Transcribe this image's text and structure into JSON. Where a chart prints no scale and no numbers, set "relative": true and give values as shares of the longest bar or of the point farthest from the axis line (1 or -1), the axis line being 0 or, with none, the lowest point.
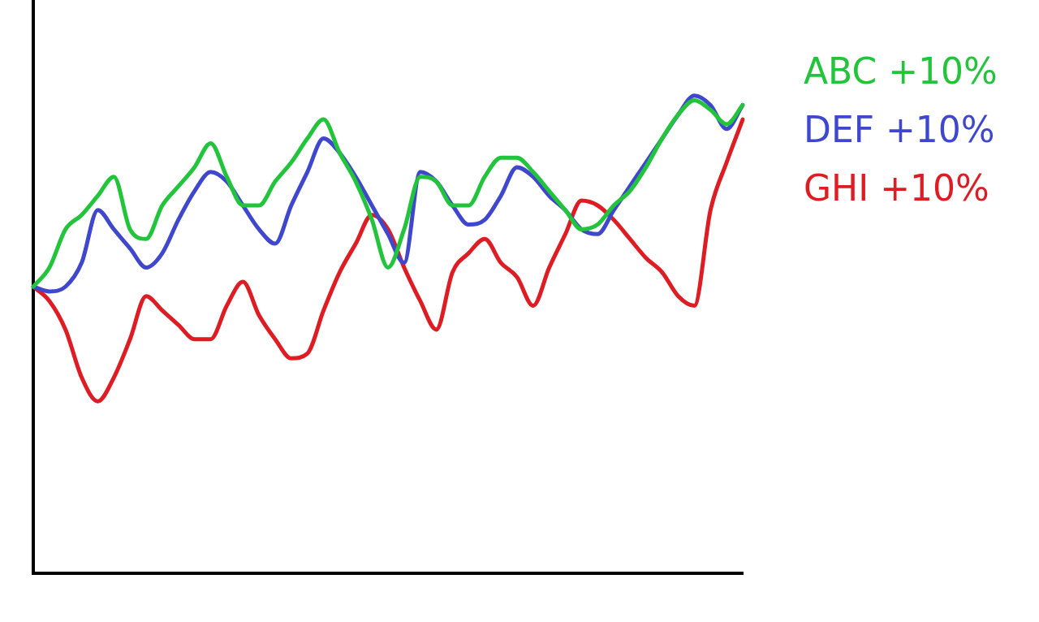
{
  "chart_data": {
    "type": "line",
    "relative": true,
    "legend": "top right",
    "categories": [
      null,
      null,
      null,
      null,
      null,
      null,
      null,
      null,
      null,
      null,
      null,
      null,
      null,
      null,
      null,
      null,
      null,
      null,
      null,
      null,
      null,
      null,
      null,
      null,
      null,
      null,
      null,
      null,
      null,
      null,
      null,
      null,
      null,
      null,
      null,
      null,
      null,
      null,
      null,
      null,
      null,
      null,
      null,
      null,
      null
    ],
    "series": [
      {
        "name": "ABC +10%",
        "color": "#22c43c",
        "values": [
          0.6,
          0.64,
          0.72,
          0.75,
          0.79,
          0.83,
          0.72,
          0.7,
          0.77,
          0.81,
          0.85,
          0.9,
          0.83,
          0.77,
          0.77,
          0.82,
          0.86,
          0.91,
          0.95,
          0.88,
          0.82,
          0.74,
          0.64,
          0.72,
          0.83,
          0.82,
          0.77,
          0.77,
          0.83,
          0.87,
          0.87,
          0.84,
          0.8,
          0.76,
          0.72,
          0.73,
          0.77,
          0.8,
          0.85,
          0.91,
          0.96,
          0.99,
          0.97,
          0.94,
          0.98
        ]
      },
      {
        "name": "DEF +10%",
        "color": "#3f48cc",
        "values": [
          0.6,
          0.59,
          0.6,
          0.65,
          0.76,
          0.72,
          0.68,
          0.64,
          0.67,
          0.74,
          0.8,
          0.84,
          0.82,
          0.77,
          0.72,
          0.69,
          0.77,
          0.84,
          0.91,
          0.88,
          0.83,
          0.77,
          0.71,
          0.65,
          0.84,
          0.82,
          0.77,
          0.73,
          0.74,
          0.79,
          0.85,
          0.83,
          0.79,
          0.76,
          0.72,
          0.71,
          0.76,
          0.81,
          0.86,
          0.91,
          0.96,
          1.0,
          0.98,
          0.93,
          0.98
        ]
      },
      {
        "name": "GHI +10%",
        "color": "#dd1c24",
        "values": [
          0.6,
          0.57,
          0.51,
          0.41,
          0.36,
          0.41,
          0.49,
          0.58,
          0.55,
          0.52,
          0.49,
          0.49,
          0.56,
          0.61,
          0.54,
          0.49,
          0.45,
          0.46,
          0.55,
          0.63,
          0.69,
          0.75,
          0.72,
          0.64,
          0.57,
          0.51,
          0.63,
          0.67,
          0.7,
          0.65,
          0.62,
          0.56,
          0.64,
          0.71,
          0.78,
          0.77,
          0.74,
          0.7,
          0.66,
          0.63,
          0.58,
          0.56,
          0.76,
          0.86,
          0.95
        ]
      }
    ]
  }
}
